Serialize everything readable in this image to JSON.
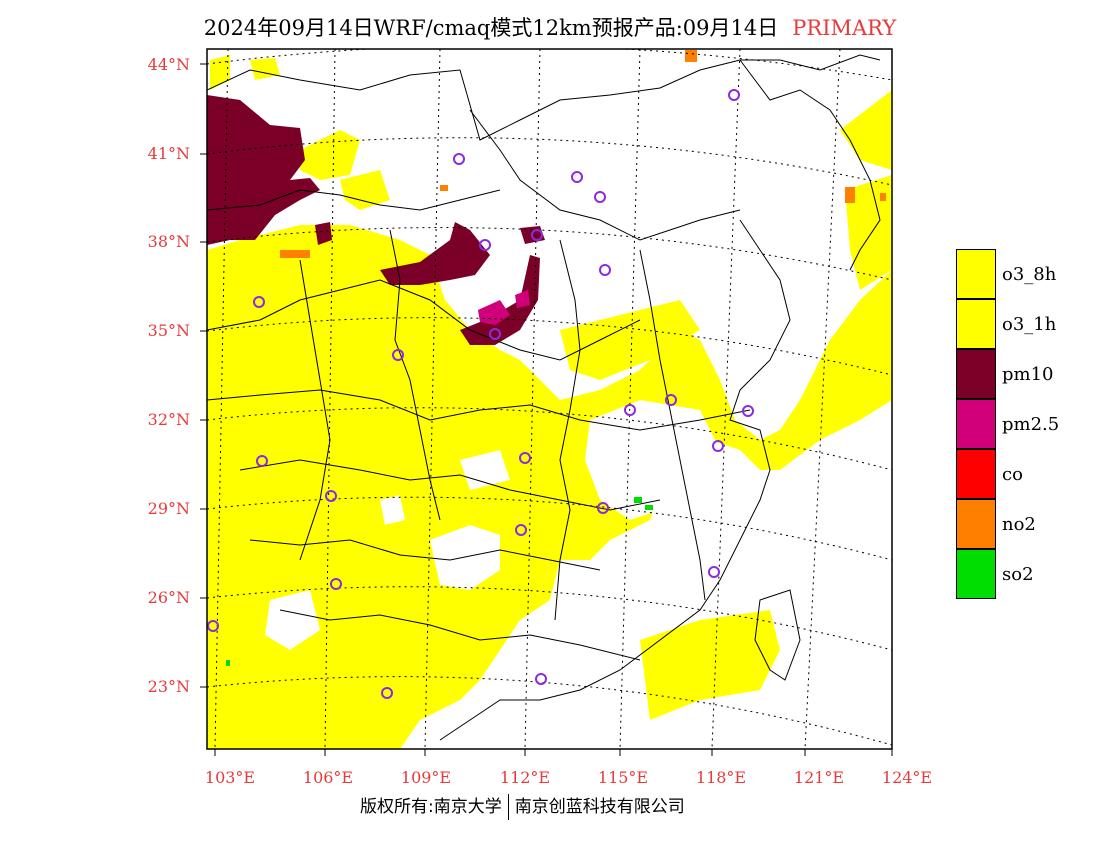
{
  "header": {
    "title": "2024年09月14日WRF/cmaq模式12km预报产品:09月14日",
    "tag": "PRIMARY"
  },
  "axes": {
    "lat_labels": [
      "44°N",
      "41°N",
      "38°N",
      "35°N",
      "32°N",
      "29°N",
      "26°N",
      "23°N"
    ],
    "lon_labels": [
      "103°E",
      "106°E",
      "109°E",
      "112°E",
      "115°E",
      "118°E",
      "121°E",
      "124°E"
    ]
  },
  "legend": {
    "items": [
      {
        "label": "o3_8h",
        "color": "#ffff00"
      },
      {
        "label": "o3_1h",
        "color": "#ffff00"
      },
      {
        "label": "pm10",
        "color": "#7a0028"
      },
      {
        "label": "pm2.5",
        "color": "#d0007a"
      },
      {
        "label": "co",
        "color": "#ff0000"
      },
      {
        "label": "no2",
        "color": "#ff7f00"
      },
      {
        "label": "so2",
        "color": "#00dd00"
      }
    ]
  },
  "footer": {
    "copyright": "版权所有:南京大学",
    "company": "南京创蓝科技有限公司"
  },
  "colors": {
    "o3": "#ffff00",
    "pm10": "#7a0028",
    "pm25": "#d0007a",
    "no2": "#ff7f00",
    "so2": "#00dd00",
    "station": "#8a2be2",
    "axis_text": "#e83a3a"
  }
}
